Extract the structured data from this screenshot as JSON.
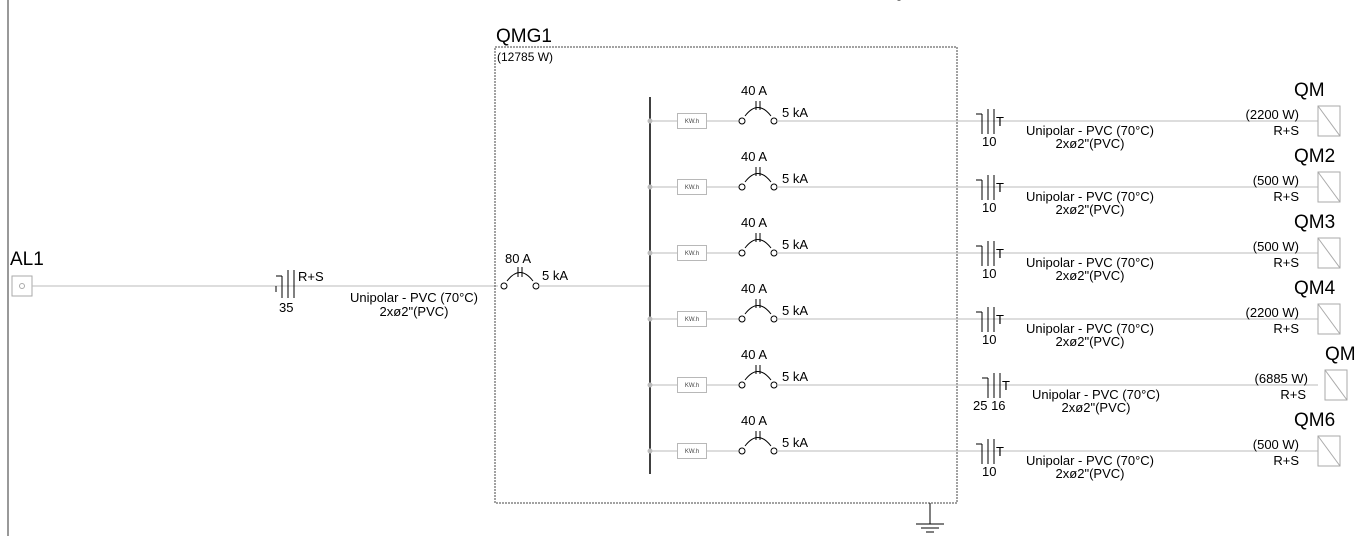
{
  "source": {
    "name": "AL1",
    "cable": {
      "phases": "R+S",
      "size": "35",
      "type": "Unipolar - PVC (70°C)",
      "conduit": "2xø2\"(PVC)"
    }
  },
  "panel": {
    "name": "QMG1",
    "power": "(12785 W)",
    "main_breaker": {
      "current": "80 A",
      "capacity": "5 kA"
    },
    "meter_label": "KW.h"
  },
  "circuits": [
    {
      "breaker_current": "40 A",
      "breaker_capacity": "5 kA",
      "cable_size": "10",
      "cable_marker": "T",
      "cable_type": "Unipolar - PVC (70°C)",
      "conduit": "2xø2\"(PVC)",
      "load_power": "(2200 W)",
      "load_phases": "R+S",
      "load_name": "QM"
    },
    {
      "breaker_current": "40 A",
      "breaker_capacity": "5 kA",
      "cable_size": "10",
      "cable_marker": "T",
      "cable_type": "Unipolar - PVC (70°C)",
      "conduit": "2xø2\"(PVC)",
      "load_power": "(500 W)",
      "load_phases": "R+S",
      "load_name": "QM2"
    },
    {
      "breaker_current": "40 A",
      "breaker_capacity": "5 kA",
      "cable_size": "10",
      "cable_marker": "T",
      "cable_type": "Unipolar - PVC (70°C)",
      "conduit": "2xø2\"(PVC)",
      "load_power": "(500 W)",
      "load_phases": "R+S",
      "load_name": "QM3"
    },
    {
      "breaker_current": "40 A",
      "breaker_capacity": "5 kA",
      "cable_size": "10",
      "cable_marker": "T",
      "cable_type": "Unipolar - PVC (70°C)",
      "conduit": "2xø2\"(PVC)",
      "load_power": "(2200 W)",
      "load_phases": "R+S",
      "load_name": "QM4"
    },
    {
      "breaker_current": "40 A",
      "breaker_capacity": "5 kA",
      "cable_size": "25 16",
      "cable_marker": "T",
      "cable_type": "Unipolar - PVC (70°C)",
      "conduit": "2xø2\"(PVC)",
      "load_power": "(6885 W)",
      "load_phases": "R+S",
      "load_name": "QM"
    },
    {
      "breaker_current": "40 A",
      "breaker_capacity": "5 kA",
      "cable_size": "10",
      "cable_marker": "T",
      "cable_type": "Unipolar - PVC (70°C)",
      "conduit": "2xø2\"(PVC)",
      "load_power": "(500 W)",
      "load_phases": "R+S",
      "load_name": "QM6"
    }
  ],
  "top_mark": "-"
}
